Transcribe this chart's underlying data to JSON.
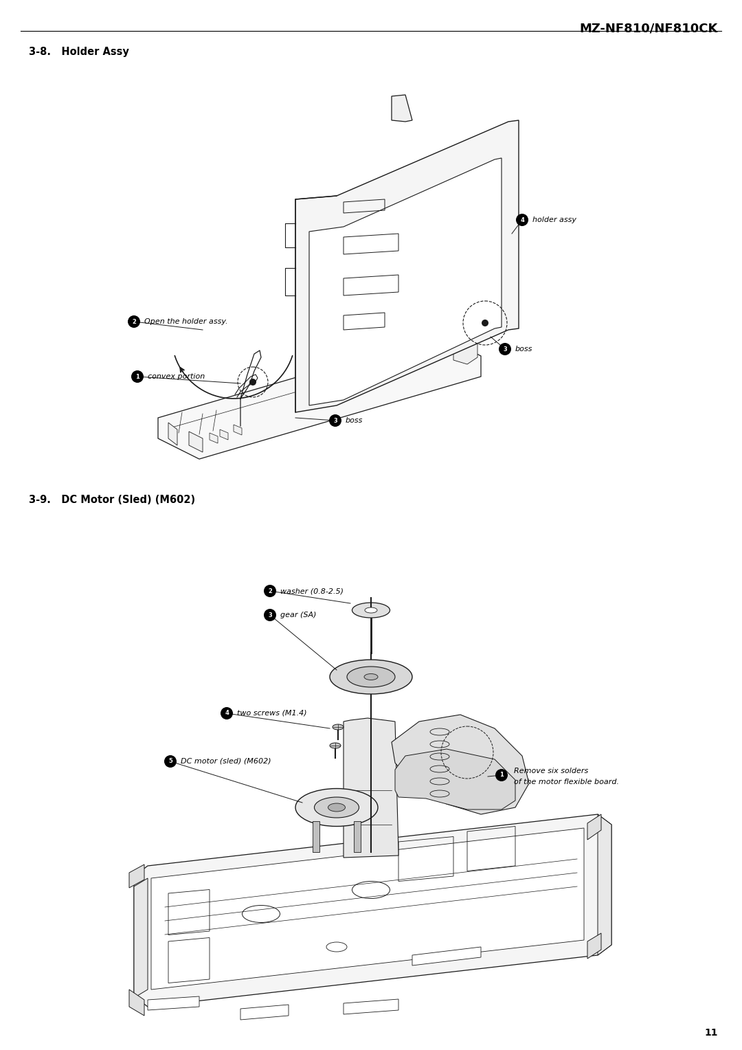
{
  "page_title": "MZ-NF810/NF810CK",
  "page_number": "11",
  "section1_title": "3-8.   Holder Assy",
  "section2_title": "3-9.   DC Motor (Sled) (M602)",
  "background_color": "#ffffff",
  "text_color": "#000000",
  "title_fontsize": 13,
  "section_fontsize": 10.5,
  "label_fontsize": 8,
  "page_num_fontsize": 10
}
